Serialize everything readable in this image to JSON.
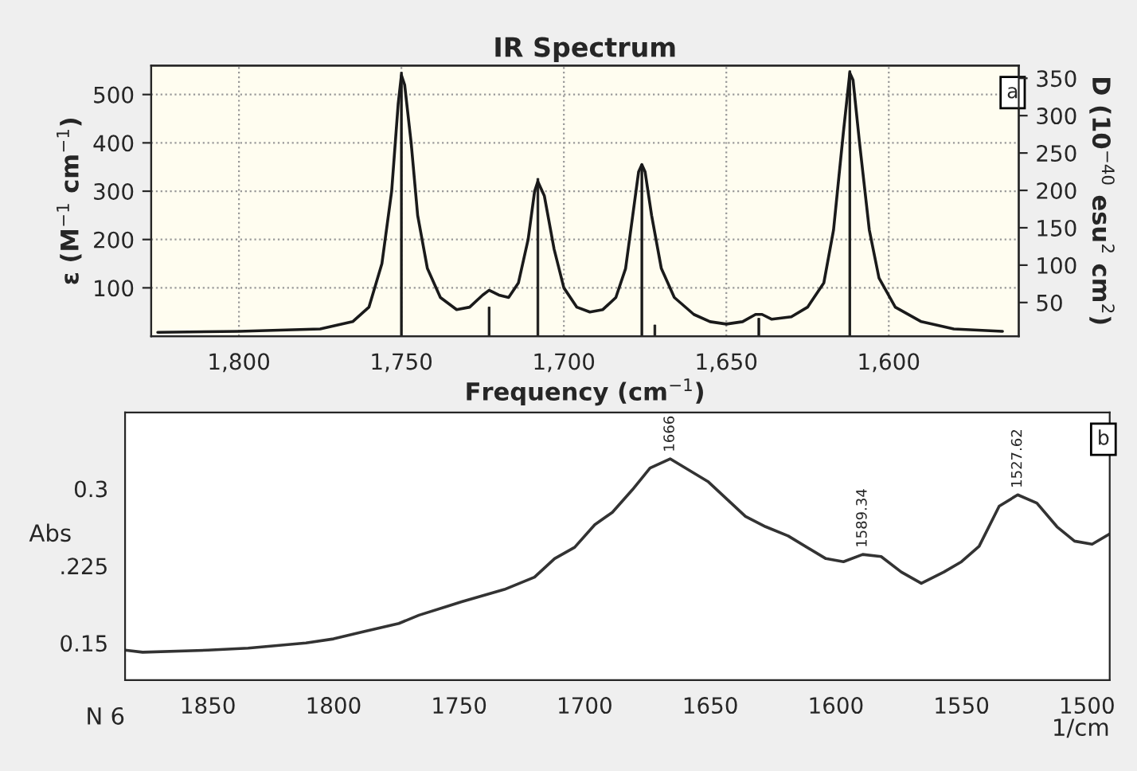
{
  "chart_data": [
    {
      "type": "line",
      "title": "IR Spectrum",
      "xlabel": "Frequency (cm$^{−1}$)",
      "ylabel": "ε (M$^{−1}$ cm$^{−1}$)",
      "y2label": "D (10$^{−40}$ esu$^{2}$ cm$^{2}$)",
      "xlim": [
        1827,
        1560
      ],
      "ylim": [
        0,
        560
      ],
      "y2lim": [
        5,
        367
      ],
      "xticks": [
        {
          "value": 1800,
          "label": "1,800"
        },
        {
          "value": 1750,
          "label": "1,750"
        },
        {
          "value": 1700,
          "label": "1,700"
        },
        {
          "value": 1650,
          "label": "1,650"
        },
        {
          "value": 1600,
          "label": "1,600"
        }
      ],
      "yticks": [
        100,
        200,
        300,
        400,
        500
      ],
      "y2ticks": [
        50,
        100,
        150,
        200,
        250,
        300,
        350
      ],
      "grid": true,
      "series": [
        {
          "color": "#1a1a1a",
          "x": [
            1825,
            1800,
            1775,
            1765,
            1760,
            1756,
            1753,
            1751,
            1750,
            1749,
            1747,
            1745,
            1742,
            1738,
            1733,
            1729,
            1725,
            1723,
            1720,
            1717,
            1714,
            1711,
            1709,
            1708,
            1706,
            1703,
            1700,
            1696,
            1692,
            1688,
            1684,
            1681,
            1679,
            1677,
            1676,
            1675,
            1673,
            1670,
            1666,
            1660,
            1655,
            1650,
            1645,
            1641,
            1639,
            1636,
            1630,
            1625,
            1620,
            1617,
            1614,
            1612,
            1611,
            1609,
            1606,
            1603,
            1598,
            1590,
            1580,
            1565
          ],
          "values": [
            8,
            10,
            15,
            30,
            60,
            150,
            300,
            480,
            540,
            520,
            400,
            250,
            140,
            80,
            55,
            60,
            85,
            95,
            85,
            80,
            110,
            200,
            300,
            320,
            290,
            180,
            100,
            60,
            50,
            55,
            80,
            140,
            240,
            340,
            355,
            340,
            250,
            140,
            80,
            45,
            30,
            25,
            30,
            45,
            45,
            35,
            40,
            60,
            110,
            220,
            420,
            545,
            530,
            400,
            220,
            120,
            60,
            30,
            15,
            10
          ]
        },
        {
          "type": "bar",
          "axis": "y2",
          "color": "#1a1a1a",
          "x": [
            1750,
            1723,
            1708,
            1676,
            1672,
            1640,
            1612
          ],
          "values": [
            358,
            44,
            216,
            235,
            20,
            29,
            360
          ]
        }
      ],
      "annotations": [
        "a"
      ]
    },
    {
      "type": "line",
      "ylabel": "Abs",
      "xlabel": "1/cm",
      "xlim": [
        1883,
        1491
      ],
      "ylim": [
        0.114,
        0.374
      ],
      "xticks": [
        1850,
        1800,
        1750,
        1700,
        1650,
        1600,
        1550,
        1500
      ],
      "yticks": [
        0.3,
        {
          "value": 0.225,
          "label": ".225"
        },
        0.15
      ],
      "grid": false,
      "series": [
        {
          "color": "#333333",
          "x": [
            1883,
            1876,
            1850,
            1834,
            1811,
            1800,
            1788,
            1774,
            1766,
            1749,
            1732,
            1720,
            1712,
            1704,
            1696,
            1689,
            1681,
            1674,
            1666,
            1651,
            1636,
            1628,
            1619,
            1604,
            1597,
            1589.34,
            1582,
            1574,
            1566,
            1557,
            1550,
            1543,
            1535,
            1527.62,
            1520,
            1512,
            1505,
            1498,
            1491
          ],
          "values": [
            0.143,
            0.141,
            0.143,
            0.145,
            0.15,
            0.154,
            0.161,
            0.169,
            0.177,
            0.19,
            0.202,
            0.214,
            0.232,
            0.243,
            0.265,
            0.277,
            0.299,
            0.32,
            0.329,
            0.307,
            0.273,
            0.263,
            0.254,
            0.232,
            0.229,
            0.236,
            0.234,
            0.219,
            0.208,
            0.219,
            0.229,
            0.244,
            0.283,
            0.294,
            0.286,
            0.263,
            0.249,
            0.246,
            0.256
          ]
        }
      ],
      "annotations": [
        {
          "text": "1666",
          "x": 1666,
          "y": 0.329
        },
        {
          "text": "1589.34",
          "x": 1589.34,
          "y": 0.236
        },
        {
          "text": "1527.62",
          "x": 1527.62,
          "y": 0.294
        },
        "b",
        "N 6"
      ]
    }
  ]
}
